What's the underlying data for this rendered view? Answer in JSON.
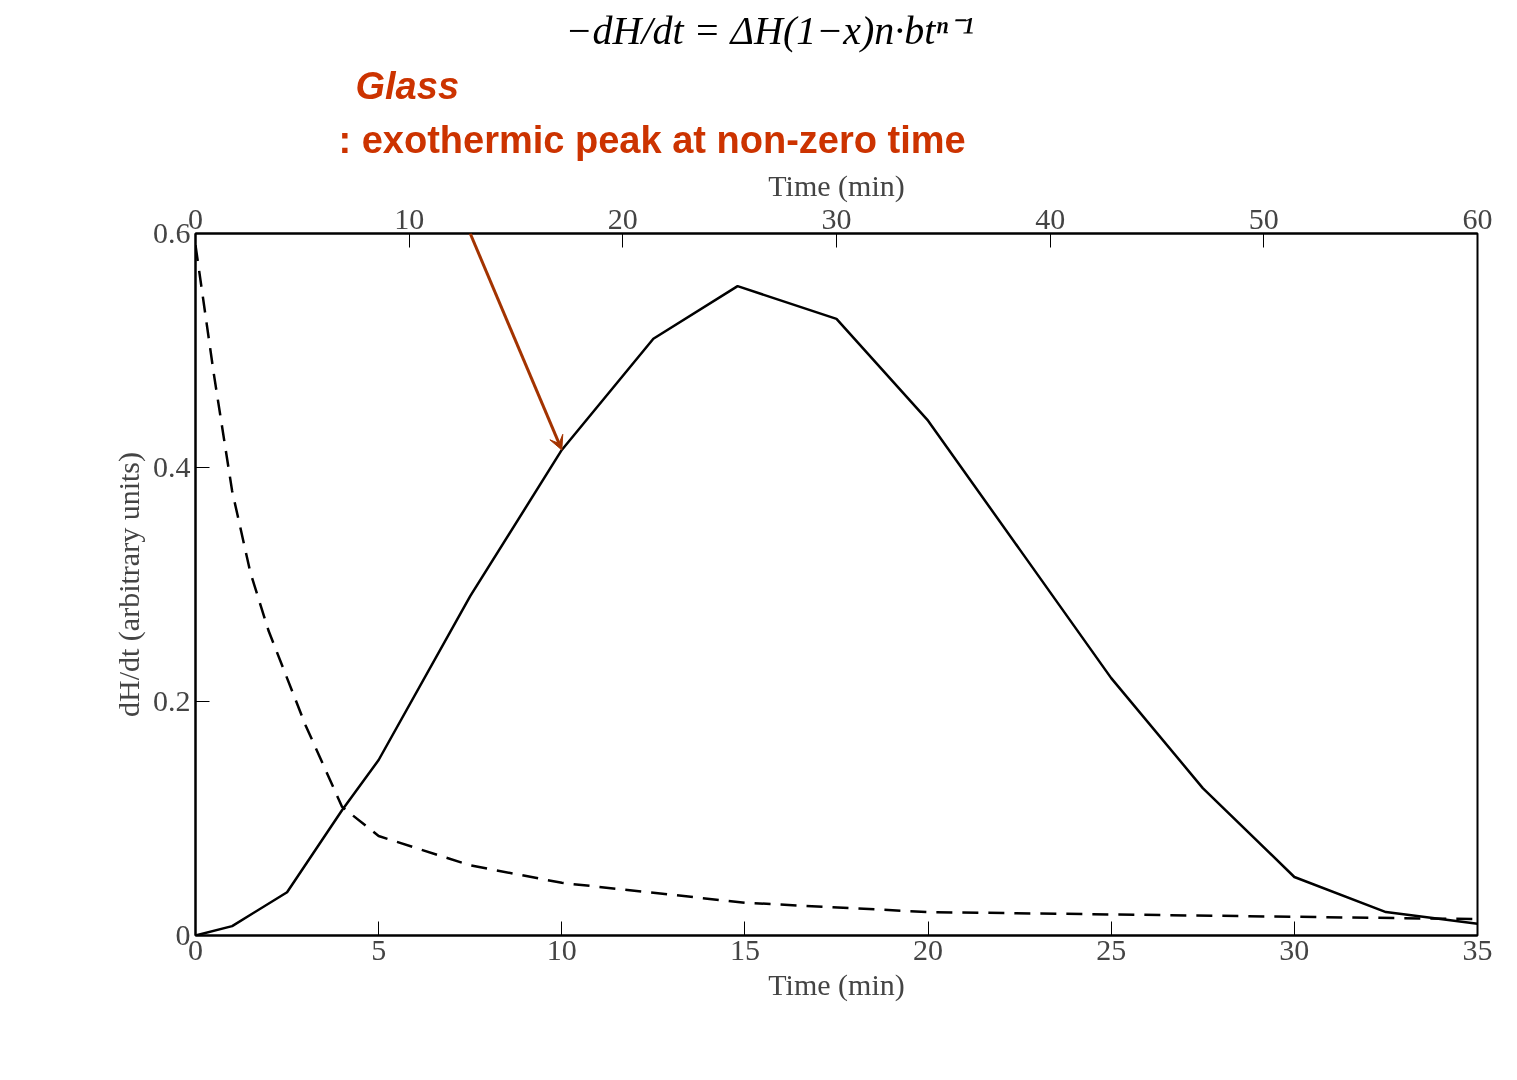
{
  "chart_data": {
    "type": "line",
    "xlabel": "Time (min)",
    "x2label": "Time (min)",
    "ylabel": "dH/dt (arbitrary units)",
    "annotations": [
      "−dH/dt = ΔH(1−x)n·btⁿ⁻¹",
      "Glass",
      ": exothermic peak at non-zero time"
    ],
    "series": [
      {
        "color": "#000000",
        "line_style": "solid",
        "x": [
          0,
          1,
          2.5,
          4,
          5,
          7.5,
          10,
          12.5,
          14.8,
          17.5,
          20,
          22.5,
          25,
          27.5,
          30,
          32.5,
          35
        ],
        "values": [
          0,
          0.008,
          0.037,
          0.107,
          0.15,
          0.29,
          0.415,
          0.51,
          0.555,
          0.527,
          0.44,
          0.33,
          0.22,
          0.126,
          0.05,
          0.02,
          0.01
        ]
      },
      {
        "color": "#000000",
        "line_style": "dashed",
        "x": [
          0,
          0.5,
          1,
          1.5,
          2,
          3,
          4,
          5,
          7.5,
          10,
          15,
          20,
          25,
          30,
          35
        ],
        "values": [
          0.59,
          0.48,
          0.38,
          0.31,
          0.26,
          0.18,
          0.11,
          0.085,
          0.06,
          0.045,
          0.028,
          0.02,
          0.018,
          0.016,
          0.014
        ]
      }
    ],
    "xlim": [
      0,
      35
    ],
    "xticks": [
      0,
      5,
      10,
      15,
      20,
      25,
      30,
      35
    ],
    "x2lim": [
      0,
      60
    ],
    "x2ticks": [
      0,
      10,
      20,
      30,
      40,
      50,
      60
    ],
    "ylim": [
      0,
      0.6
    ],
    "yticks": [
      0,
      0.2,
      0.4,
      0.6
    ],
    "grid": false
  }
}
